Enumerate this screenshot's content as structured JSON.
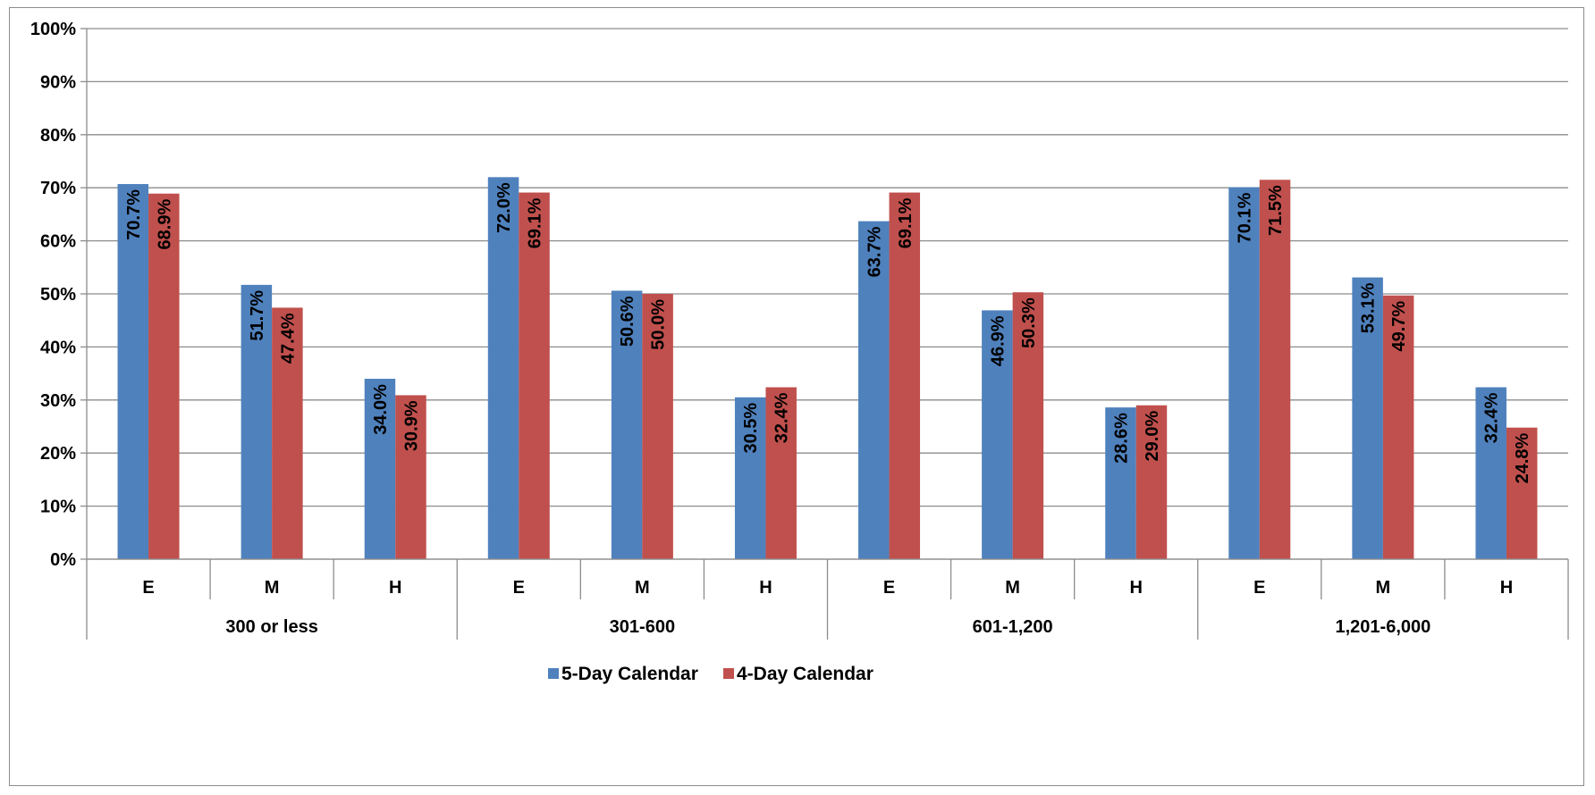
{
  "chart_data": {
    "type": "bar",
    "title": "",
    "xlabel": "",
    "ylabel": "",
    "ylim": [
      0,
      100
    ],
    "y_ticks": [
      "0%",
      "10%",
      "20%",
      "30%",
      "40%",
      "50%",
      "60%",
      "70%",
      "80%",
      "90%",
      "100%"
    ],
    "grid": true,
    "legend_position": "bottom",
    "groups": [
      "300 or less",
      "301-600",
      "601-1,200",
      "1,201-6,000"
    ],
    "subcategories": [
      "E",
      "M",
      "H"
    ],
    "series": [
      {
        "name": "5-Day Calendar",
        "color": "#4F81BD",
        "values": [
          70.7,
          51.7,
          34.0,
          72.0,
          50.6,
          30.5,
          63.7,
          46.9,
          28.6,
          70.1,
          53.1,
          32.4
        ],
        "labels": [
          "70.7%",
          "51.7%",
          "34.0%",
          "72.0%",
          "50.6%",
          "30.5%",
          "63.7%",
          "46.9%",
          "28.6%",
          "70.1%",
          "53.1%",
          "32.4%"
        ]
      },
      {
        "name": "4-Day Calendar",
        "color": "#C0504D",
        "values": [
          68.9,
          47.4,
          30.9,
          69.1,
          50.0,
          32.4,
          69.1,
          50.3,
          29.0,
          71.5,
          49.7,
          24.8
        ],
        "labels": [
          "68.9%",
          "47.4%",
          "30.9%",
          "69.1%",
          "50.0%",
          "32.4%",
          "69.1%",
          "50.3%",
          "29.0%",
          "71.5%",
          "49.7%",
          "24.8%"
        ]
      }
    ]
  }
}
